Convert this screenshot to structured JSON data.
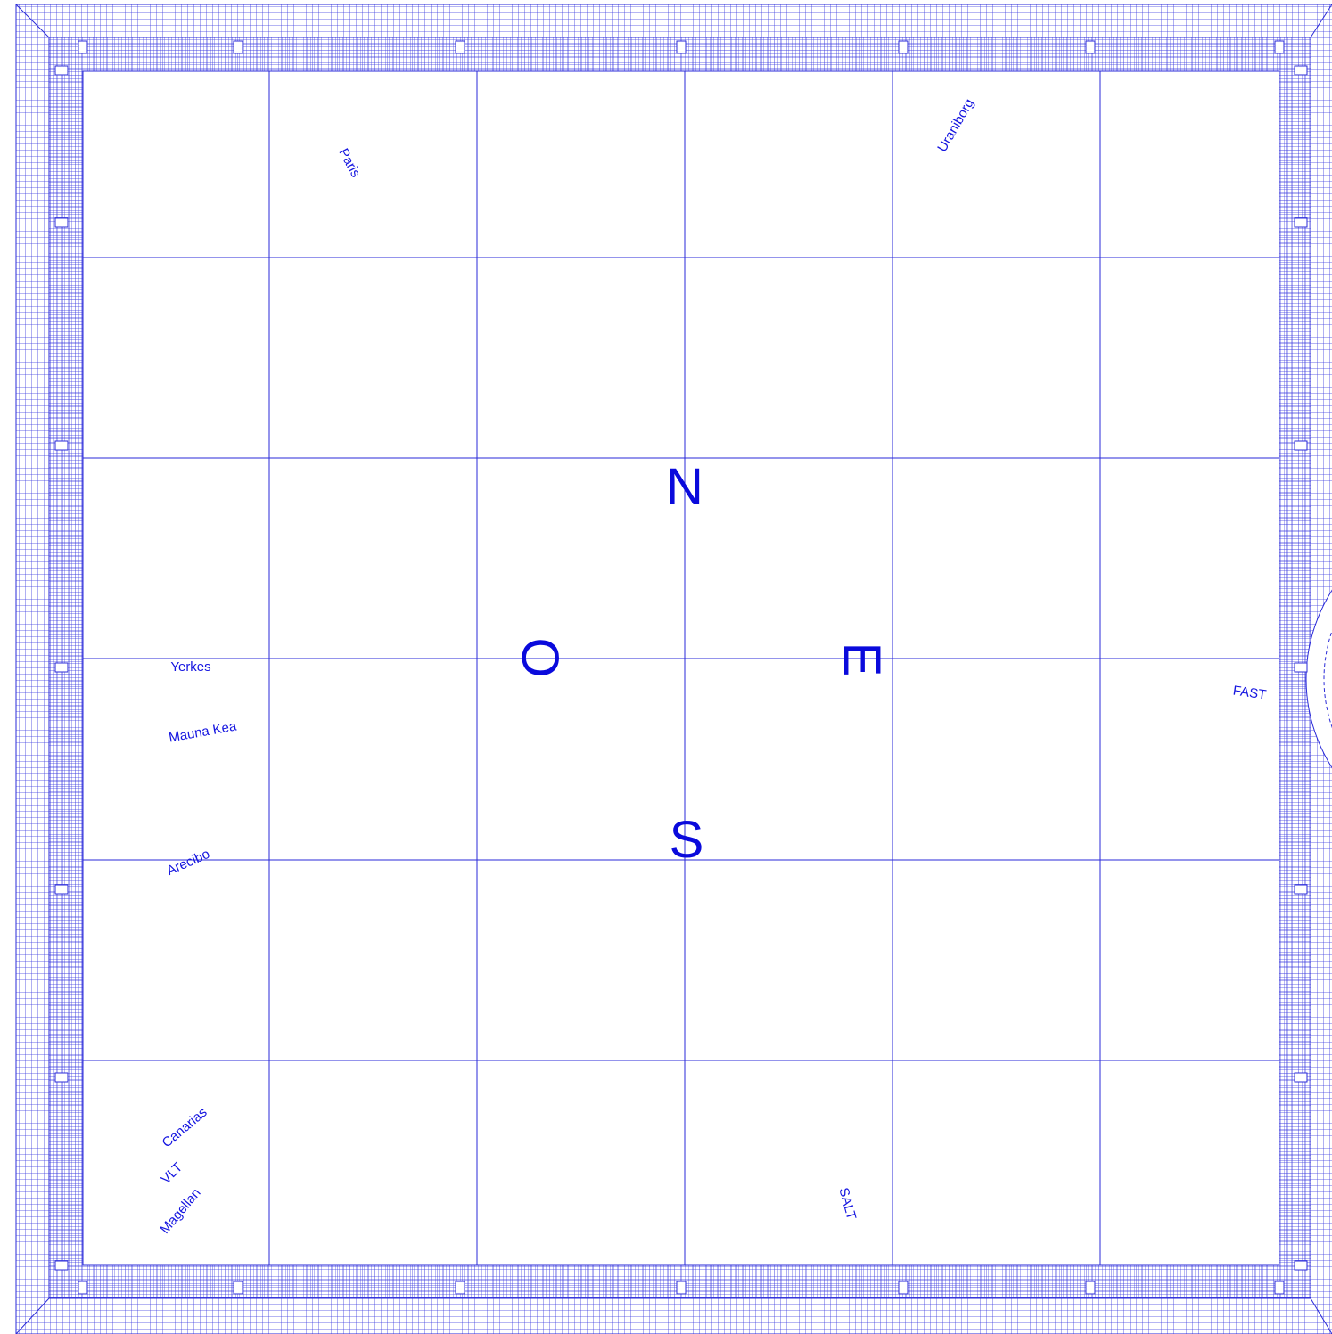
{
  "cardinals": {
    "north": "N",
    "south": "S",
    "east": "E",
    "west": "O"
  },
  "sites": [
    "Paris",
    "Uraniborg",
    "Yerkes",
    "Mauna Kea",
    "FAST",
    "Arecibo",
    "Canarias",
    "VLT",
    "Magellan",
    "SALT"
  ]
}
